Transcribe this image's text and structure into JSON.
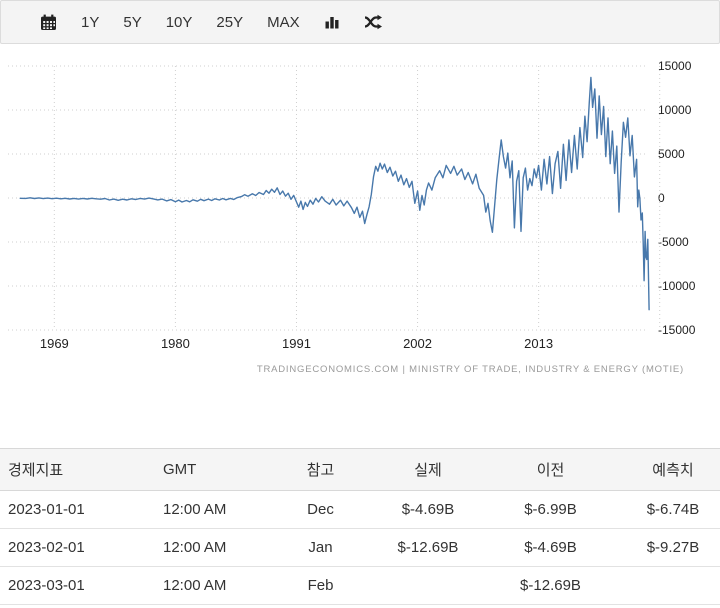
{
  "toolbar": {
    "range_buttons": [
      "1Y",
      "5Y",
      "10Y",
      "25Y",
      "MAX"
    ],
    "icons": [
      "calendar-icon",
      "bar-chart-icon",
      "shuffle-icon"
    ]
  },
  "chart_data": {
    "type": "line",
    "line_color": "#4878ab",
    "grid": "dotted",
    "legend": false,
    "x_tick_labels": [
      1969,
      1980,
      1991,
      2002,
      2013
    ],
    "x_grid_years": [
      1969,
      1980,
      1991,
      2002,
      2013,
      2024
    ],
    "y_ticks": [
      15000,
      10000,
      5000,
      0,
      -5000,
      -10000,
      -15000
    ],
    "x_range": [
      1965.7,
      2023.3
    ],
    "y_range": [
      -15000,
      15000
    ],
    "attribution": "TRADINGECONOMICS.COM | MINISTRY OF TRADE, INDUSTRY & ENERGY (MOTIE)",
    "series": [
      {
        "name": "balance-of-trade",
        "points": [
          [
            1965.9,
            -30
          ],
          [
            1966.4,
            -40
          ],
          [
            1966.8,
            20
          ],
          [
            1967.2,
            -60
          ],
          [
            1967.6,
            10
          ],
          [
            1968,
            -70
          ],
          [
            1968.4,
            -10
          ],
          [
            1968.8,
            -80
          ],
          [
            1969.2,
            -20
          ],
          [
            1969.6,
            -90
          ],
          [
            1970,
            -30
          ],
          [
            1970.4,
            -110
          ],
          [
            1970.8,
            -40
          ],
          [
            1971.2,
            -130
          ],
          [
            1971.6,
            -50
          ],
          [
            1972,
            -110
          ],
          [
            1972.4,
            -30
          ],
          [
            1972.8,
            -90
          ],
          [
            1973.2,
            -140
          ],
          [
            1973.6,
            -60
          ],
          [
            1974,
            -230
          ],
          [
            1974.4,
            -120
          ],
          [
            1974.8,
            -260
          ],
          [
            1975.2,
            -140
          ],
          [
            1975.6,
            -230
          ],
          [
            1976,
            -90
          ],
          [
            1976.4,
            -170
          ],
          [
            1976.8,
            -40
          ],
          [
            1977.2,
            -120
          ],
          [
            1977.6,
            -10
          ],
          [
            1978,
            -100
          ],
          [
            1978.4,
            -220
          ],
          [
            1978.8,
            -120
          ],
          [
            1979.2,
            -330
          ],
          [
            1979.6,
            -180
          ],
          [
            1980,
            -430
          ],
          [
            1980.3,
            -240
          ],
          [
            1980.6,
            -460
          ],
          [
            1981,
            -280
          ],
          [
            1981.3,
            -430
          ],
          [
            1981.6,
            -200
          ],
          [
            1982,
            -360
          ],
          [
            1982.3,
            -150
          ],
          [
            1982.6,
            -310
          ],
          [
            1983,
            -120
          ],
          [
            1983.3,
            -280
          ],
          [
            1983.6,
            -90
          ],
          [
            1984,
            -230
          ],
          [
            1984.3,
            -60
          ],
          [
            1984.6,
            -200
          ],
          [
            1985,
            -40
          ],
          [
            1985.3,
            -170
          ],
          [
            1985.6,
            30
          ],
          [
            1986,
            160
          ],
          [
            1986.3,
            380
          ],
          [
            1986.6,
            200
          ],
          [
            1987,
            480
          ],
          [
            1987.3,
            280
          ],
          [
            1987.6,
            620
          ],
          [
            1988,
            400
          ],
          [
            1988.25,
            850
          ],
          [
            1988.5,
            550
          ],
          [
            1988.75,
            1000
          ],
          [
            1989,
            650
          ],
          [
            1989.25,
            1150
          ],
          [
            1989.5,
            400
          ],
          [
            1989.75,
            800
          ],
          [
            1990,
            200
          ],
          [
            1990.25,
            550
          ],
          [
            1990.5,
            -150
          ],
          [
            1990.75,
            300
          ],
          [
            1991,
            -450
          ],
          [
            1991.2,
            -1050
          ],
          [
            1991.4,
            -350
          ],
          [
            1991.6,
            -1300
          ],
          [
            1991.8,
            -500
          ],
          [
            1992,
            -950
          ],
          [
            1992.25,
            -250
          ],
          [
            1992.5,
            -700
          ],
          [
            1992.75,
            -50
          ],
          [
            1993,
            -450
          ],
          [
            1993.3,
            150
          ],
          [
            1993.6,
            -350
          ],
          [
            1994,
            -700
          ],
          [
            1994.3,
            -150
          ],
          [
            1994.6,
            -800
          ],
          [
            1995,
            -250
          ],
          [
            1995.3,
            -900
          ],
          [
            1995.6,
            -350
          ],
          [
            1996,
            -1100
          ],
          [
            1996.25,
            -1750
          ],
          [
            1996.5,
            -1050
          ],
          [
            1996.75,
            -2200
          ],
          [
            1997,
            -1500
          ],
          [
            1997.2,
            -2900
          ],
          [
            1997.4,
            -1900
          ],
          [
            1997.6,
            -1000
          ],
          [
            1997.8,
            400
          ],
          [
            1998,
            2400
          ],
          [
            1998.2,
            3600
          ],
          [
            1998.4,
            3050
          ],
          [
            1998.6,
            3950
          ],
          [
            1998.8,
            3300
          ],
          [
            1999,
            3850
          ],
          [
            1999.25,
            2900
          ],
          [
            1999.5,
            3500
          ],
          [
            1999.75,
            2500
          ],
          [
            2000,
            3050
          ],
          [
            2000.25,
            1900
          ],
          [
            2000.5,
            2600
          ],
          [
            2000.75,
            1500
          ],
          [
            2001,
            2200
          ],
          [
            2001.25,
            1200
          ],
          [
            2001.5,
            1900
          ],
          [
            2001.75,
            -600
          ],
          [
            2002,
            800
          ],
          [
            2002.2,
            -1400
          ],
          [
            2002.4,
            300
          ],
          [
            2002.6,
            -800
          ],
          [
            2002.8,
            900
          ],
          [
            2003,
            1700
          ],
          [
            2003.3,
            900
          ],
          [
            2003.6,
            2300
          ],
          [
            2004,
            3100
          ],
          [
            2004.3,
            2300
          ],
          [
            2004.6,
            3700
          ],
          [
            2005,
            2800
          ],
          [
            2005.3,
            3600
          ],
          [
            2005.6,
            2600
          ],
          [
            2006,
            3300
          ],
          [
            2006.3,
            2100
          ],
          [
            2006.6,
            2900
          ],
          [
            2007,
            1600
          ],
          [
            2007.3,
            2700
          ],
          [
            2007.6,
            1100
          ],
          [
            2008,
            300
          ],
          [
            2008.2,
            -1600
          ],
          [
            2008.4,
            -600
          ],
          [
            2008.6,
            -2600
          ],
          [
            2008.8,
            -3900
          ],
          [
            2009,
            -900
          ],
          [
            2009.2,
            2100
          ],
          [
            2009.4,
            4400
          ],
          [
            2009.6,
            6600
          ],
          [
            2009.8,
            4700
          ],
          [
            2010,
            3400
          ],
          [
            2010.2,
            5100
          ],
          [
            2010.4,
            2300
          ],
          [
            2010.6,
            4200
          ],
          [
            2010.8,
            -3400
          ],
          [
            2011,
            1900
          ],
          [
            2011.2,
            3100
          ],
          [
            2011.4,
            -3800
          ],
          [
            2011.6,
            2300
          ],
          [
            2011.8,
            3400
          ],
          [
            2012,
            900
          ],
          [
            2012.2,
            2200
          ],
          [
            2012.4,
            1400
          ],
          [
            2012.6,
            3300
          ],
          [
            2012.8,
            2300
          ],
          [
            2013,
            3700
          ],
          [
            2013.25,
            900
          ],
          [
            2013.5,
            4400
          ],
          [
            2013.75,
            1600
          ],
          [
            2014,
            4700
          ],
          [
            2014.25,
            500
          ],
          [
            2014.5,
            3900
          ],
          [
            2014.75,
            5300
          ],
          [
            2015,
            1100
          ],
          [
            2015.25,
            6100
          ],
          [
            2015.5,
            2000
          ],
          [
            2015.75,
            6600
          ],
          [
            2016,
            2900
          ],
          [
            2016.25,
            7100
          ],
          [
            2016.5,
            3300
          ],
          [
            2016.75,
            8000
          ],
          [
            2017,
            4600
          ],
          [
            2017.2,
            9300
          ],
          [
            2017.4,
            6400
          ],
          [
            2017.6,
            10900
          ],
          [
            2017.75,
            13700
          ],
          [
            2017.9,
            10300
          ],
          [
            2018.1,
            12400
          ],
          [
            2018.3,
            6800
          ],
          [
            2018.5,
            11600
          ],
          [
            2018.7,
            7200
          ],
          [
            2018.9,
            10400
          ],
          [
            2019.1,
            4700
          ],
          [
            2019.3,
            9100
          ],
          [
            2019.5,
            3900
          ],
          [
            2019.7,
            7600
          ],
          [
            2019.9,
            2800
          ],
          [
            2020.1,
            5900
          ],
          [
            2020.3,
            -1600
          ],
          [
            2020.5,
            4100
          ],
          [
            2020.7,
            8600
          ],
          [
            2020.9,
            6900
          ],
          [
            2021.1,
            9100
          ],
          [
            2021.3,
            4800
          ],
          [
            2021.5,
            7100
          ],
          [
            2021.7,
            2400
          ],
          [
            2021.9,
            4400
          ],
          [
            2022.0,
            -1000
          ],
          [
            2022.1,
            900
          ],
          [
            2022.2,
            -100
          ],
          [
            2022.3,
            -2500
          ],
          [
            2022.42,
            -1700
          ],
          [
            2022.5,
            -5100
          ],
          [
            2022.58,
            -9400
          ],
          [
            2022.67,
            -3800
          ],
          [
            2022.75,
            -6700
          ],
          [
            2022.83,
            -6990
          ],
          [
            2022.92,
            -4690
          ],
          [
            2023.04,
            -12690
          ]
        ]
      }
    ]
  },
  "table": {
    "headers": [
      "경제지표",
      "GMT",
      "참고",
      "실제",
      "이전",
      "예측치"
    ],
    "rows": [
      [
        "2023-01-01",
        "12:00 AM",
        "Dec",
        "$-4.69B",
        "$-6.99B",
        "$-6.74B"
      ],
      [
        "2023-02-01",
        "12:00 AM",
        "Jan",
        "$-12.69B",
        "$-4.69B",
        "$-9.27B"
      ],
      [
        "2023-03-01",
        "12:00 AM",
        "Feb",
        "",
        "$-12.69B",
        ""
      ]
    ]
  }
}
